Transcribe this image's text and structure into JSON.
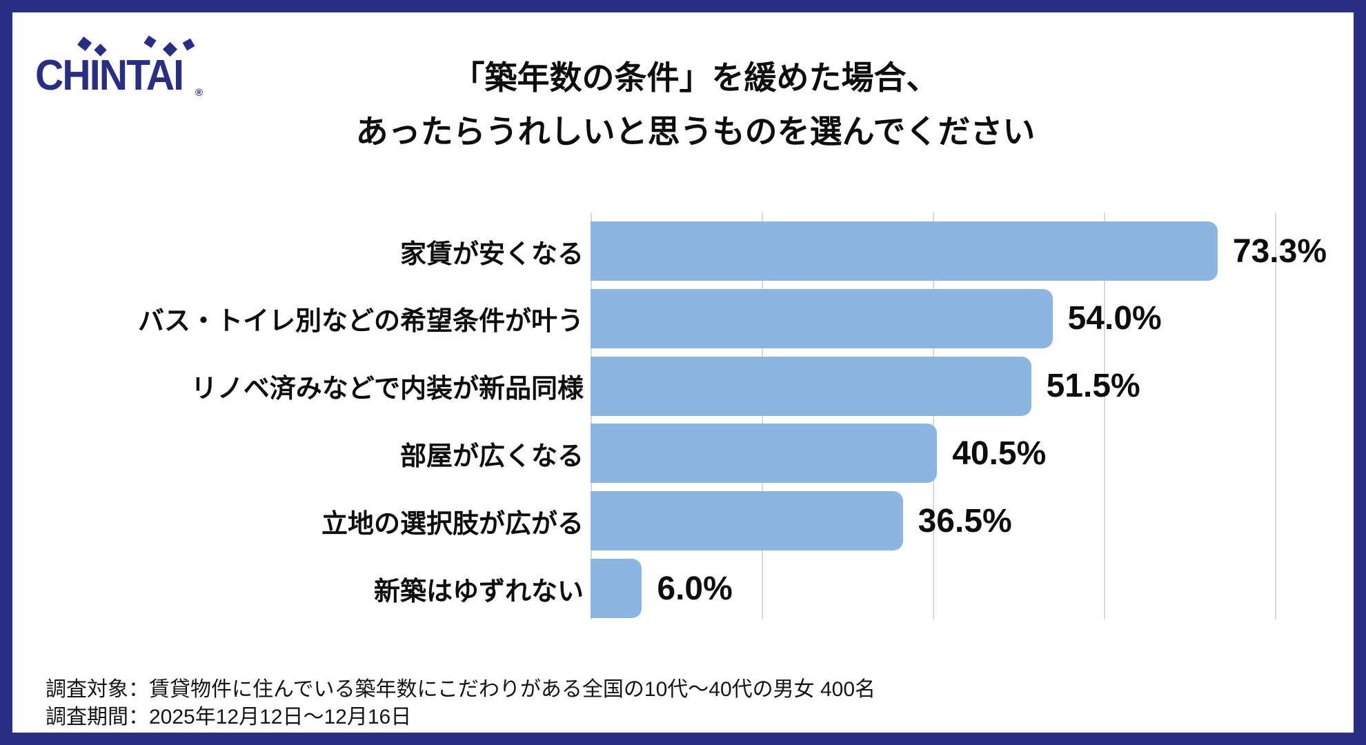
{
  "brand": {
    "logo_text": "CHINTAI",
    "registered_mark": "®",
    "color": "#292D84"
  },
  "title": {
    "line1": "「築年数の条件」を緩めた場合、",
    "line2": "あったらうれしいと思うものを選んでください"
  },
  "chart_data": {
    "type": "bar",
    "orientation": "horizontal",
    "title": "「築年数の条件」を緩めた場合、あったらうれしいと思うものを選んでください",
    "categories": [
      "家賃が安くなる",
      "バス・トイレ別などの希望条件が叶う",
      "リノベ済みなどで内装が新品同様",
      "部屋が広くなる",
      "立地の選択肢が広がる",
      "新築はゆずれない"
    ],
    "values": [
      73.3,
      54.0,
      51.5,
      40.5,
      36.5,
      6.0
    ],
    "value_labels": [
      "73.3%",
      "54.0%",
      "51.5%",
      "40.5%",
      "36.5%",
      "6.0%"
    ],
    "xlim": [
      0,
      80
    ],
    "gridline_interval": 20,
    "grid": true,
    "legend": false,
    "bar_color": "#8DB5E2",
    "gridline_color": "#D9D9D9"
  },
  "footer": {
    "line1": "調査対象：賃貸物件に住んでいる築年数にこだわりがある全国の10代〜40代の男女 400名",
    "line2": "調査期間：2025年12月12日〜12月16日"
  }
}
